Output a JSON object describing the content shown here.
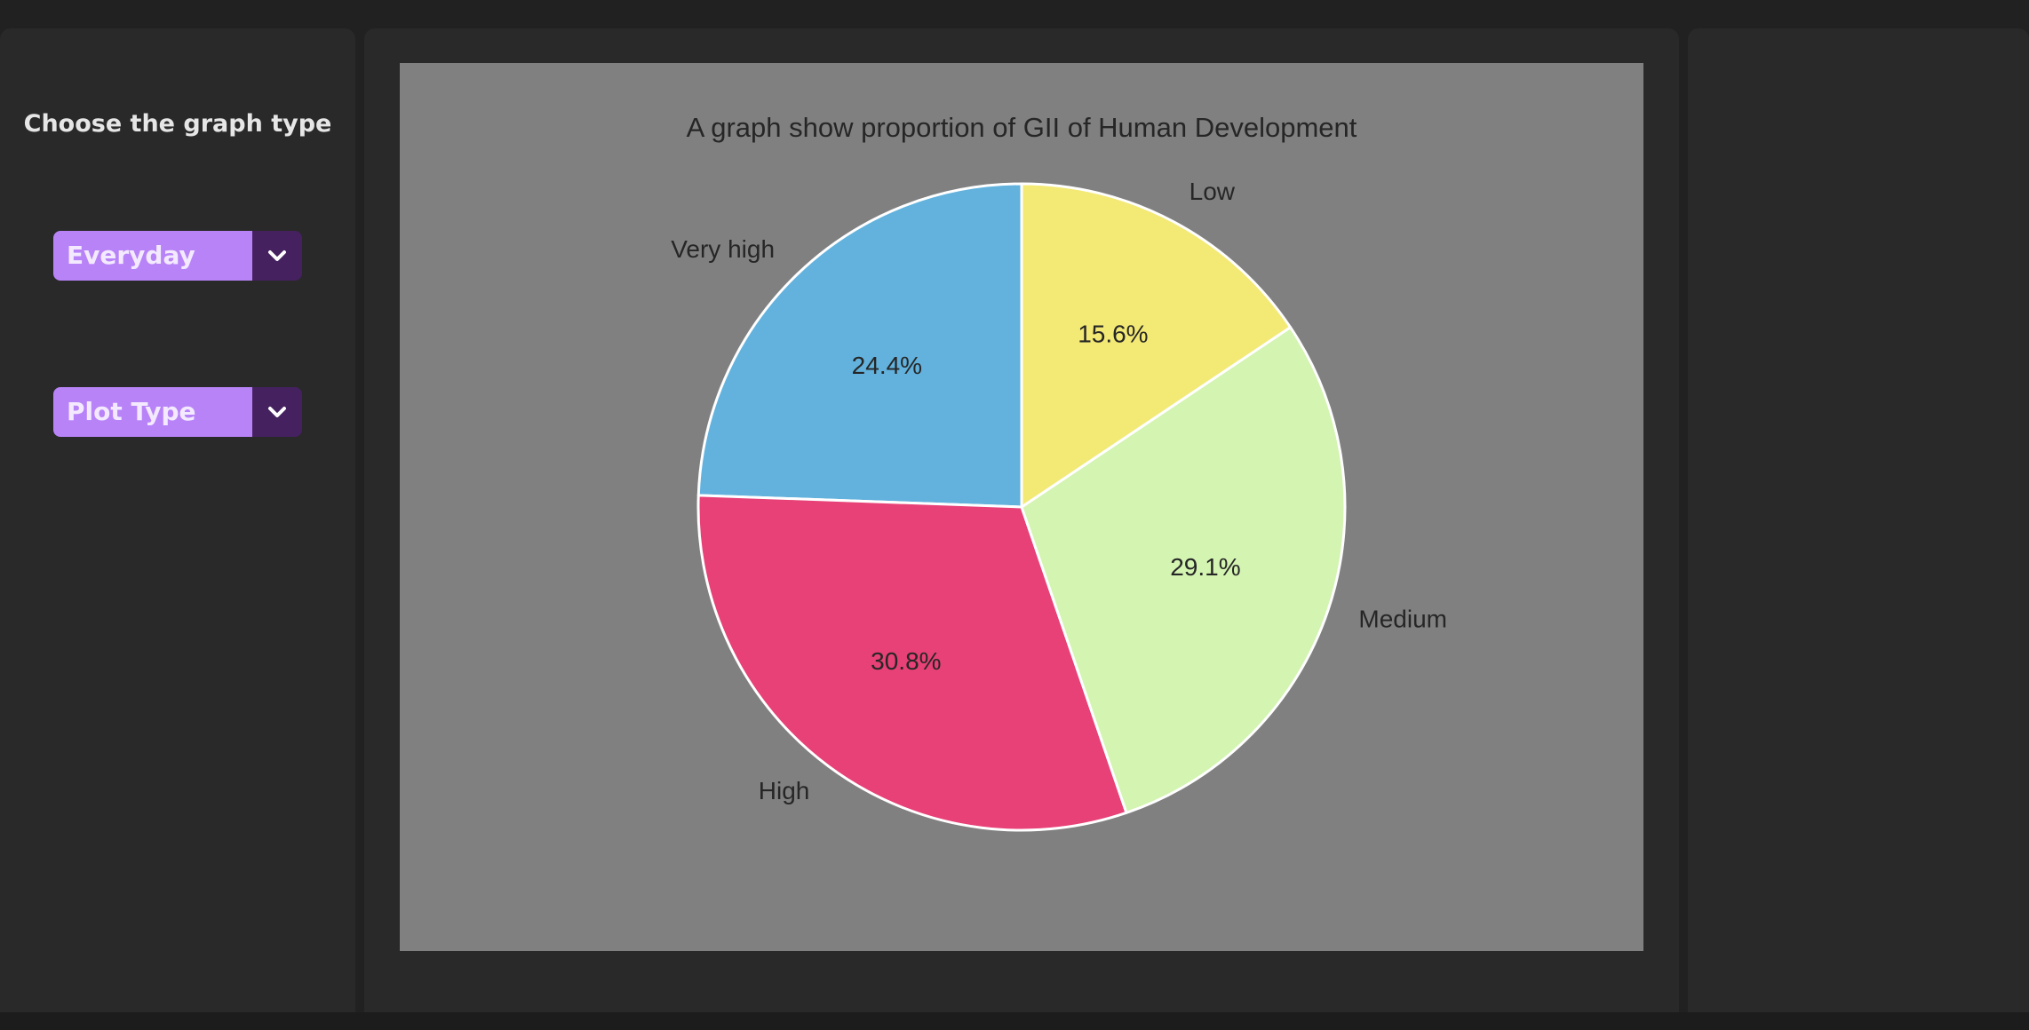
{
  "sidebar": {
    "title": "Choose the graph type",
    "dropdown_category": {
      "selected": "Everyday"
    },
    "dropdown_plot": {
      "selected": "Plot Type"
    }
  },
  "icons": {
    "caret": "chevron-down-icon"
  },
  "colors": {
    "accent": "#b983f8",
    "accent_dark": "#45215f",
    "plot_background": "#808080"
  },
  "chart_data": {
    "type": "pie",
    "title": "A graph show proportion of GII of Human Development",
    "start_angle_deg": 90,
    "direction": "counterclockwise",
    "slices": [
      {
        "label": "Very high",
        "percent": 24.4,
        "display": "24.4%",
        "color": "#62b2dd"
      },
      {
        "label": "High",
        "percent": 30.8,
        "display": "30.8%",
        "color": "#e74177"
      },
      {
        "label": "Medium",
        "percent": 29.1,
        "display": "29.1%",
        "color": "#d4f4b2"
      },
      {
        "label": "Low",
        "percent": 15.6,
        "display": "15.6%",
        "color": "#f3e975"
      }
    ]
  }
}
